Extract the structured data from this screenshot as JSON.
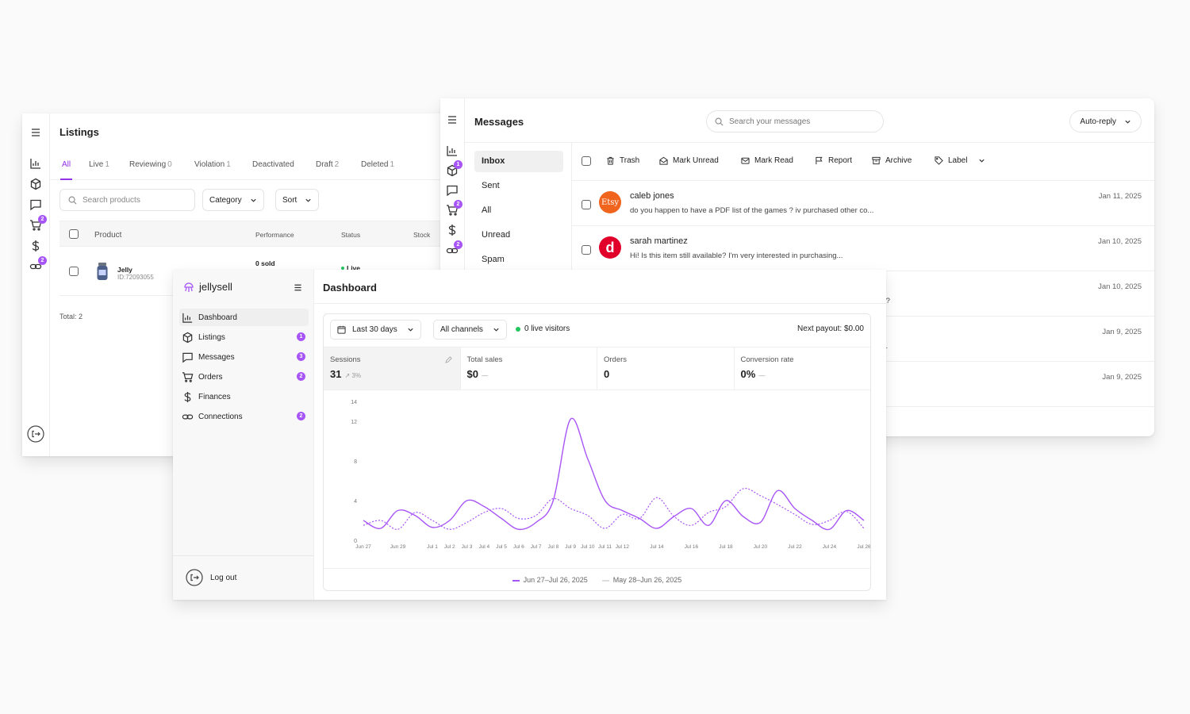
{
  "listings": {
    "title": "Listings",
    "rail_badges": [
      "2",
      "2"
    ],
    "tabs": [
      {
        "label": "All",
        "count": ""
      },
      {
        "label": "Live",
        "count": "1"
      },
      {
        "label": "Reviewing",
        "count": "0"
      },
      {
        "label": "Violation",
        "count": "1"
      },
      {
        "label": "Deactivated",
        "count": ""
      },
      {
        "label": "Draft",
        "count": "2"
      },
      {
        "label": "Deleted",
        "count": "1"
      }
    ],
    "search_placeholder": "Search products",
    "category_label": "Category",
    "sort_label": "Sort",
    "columns": {
      "product": "Product",
      "performance": "Performance",
      "status": "Status",
      "stock": "Stock"
    },
    "row": {
      "name": "Jelly",
      "id": "ID:72093055",
      "performance": "0 sold",
      "status": "Live"
    },
    "total": "Total: 2"
  },
  "messages": {
    "title": "Messages",
    "rail_badges": [
      "1",
      "2",
      "2"
    ],
    "search_placeholder": "Search your messages",
    "auto_reply": "Auto-reply",
    "folders": [
      "Inbox",
      "Sent",
      "All",
      "Unread",
      "Spam"
    ],
    "toolbar": {
      "trash": "Trash",
      "mark_unread": "Mark Unread",
      "mark_read": "Mark Read",
      "report": "Report",
      "archive": "Archive",
      "label": "Label"
    },
    "items": [
      {
        "name": "caleb jones",
        "snippet": "do you happen to have a PDF list of the games ? iv purchased other co...",
        "date": "Jan 11, 2025",
        "avatar_text": "Etsy",
        "avatar_color": "#f1641e"
      },
      {
        "name": "sarah martinez",
        "snippet": "Hi! Is this item still available? I'm very interested in purchasing...",
        "date": "Jan 10, 2025",
        "avatar_text": "d",
        "avatar_color": "#e0002a"
      },
      {
        "name": "",
        "snippet": "da?",
        "date": "Jan 10, 2025"
      },
      {
        "name": "",
        "snippet": "d...",
        "date": "Jan 9, 2025"
      },
      {
        "name": "",
        "snippet": "...",
        "date": "Jan 9, 2025"
      }
    ]
  },
  "dashboard": {
    "brand": "jellysell",
    "nav": [
      {
        "label": "Dashboard",
        "icon": "bar-chart-icon",
        "badge": ""
      },
      {
        "label": "Listings",
        "icon": "box-icon",
        "badge": "1"
      },
      {
        "label": "Messages",
        "icon": "message-icon",
        "badge": "3"
      },
      {
        "label": "Orders",
        "icon": "cart-icon",
        "badge": "2"
      },
      {
        "label": "Finances",
        "icon": "dollar-icon",
        "badge": ""
      },
      {
        "label": "Connections",
        "icon": "link-icon",
        "badge": "2"
      }
    ],
    "logout": "Log out",
    "title": "Dashboard",
    "range": "Last 30 days",
    "channels": "All channels",
    "live_visitors": "0 live visitors",
    "next_payout": "Next payout: $0.00",
    "metrics": [
      {
        "label": "Sessions",
        "value": "31",
        "delta": "↗ 3%"
      },
      {
        "label": "Total sales",
        "value": "$0",
        "delta": "—"
      },
      {
        "label": "Orders",
        "value": "0",
        "delta": ""
      },
      {
        "label": "Conversion rate",
        "value": "0%",
        "delta": "—"
      }
    ],
    "legend": {
      "current": "Jun 27–Jul 26, 2025",
      "previous": "May 28–Jun 26, 2025"
    }
  },
  "chart_data": {
    "type": "line",
    "yticks": [
      0,
      4,
      8,
      12,
      14
    ],
    "ylim": [
      0,
      14
    ],
    "xticks": [
      "Jun 27",
      "Jun 29",
      "Jul 1",
      "Jul 2",
      "Jul 3",
      "Jul 4",
      "Jul 5",
      "Jul 6",
      "Jul 7",
      "Jul 8",
      "Jul 9",
      "Jul 10",
      "Jul 11",
      "Jul 12",
      "Jul 14",
      "Jul 16",
      "Jul 18",
      "Jul 20",
      "Jul 22",
      "Jul 24",
      "Jul 26"
    ],
    "series": [
      {
        "name": "Jun 27–Jul 26, 2025",
        "color": "#a855f7",
        "style": "solid",
        "x": [
          "Jun 27",
          "Jun 28",
          "Jun 29",
          "Jun 30",
          "Jul 1",
          "Jul 2",
          "Jul 3",
          "Jul 4",
          "Jul 5",
          "Jul 6",
          "Jul 7",
          "Jul 8",
          "Jul 9",
          "Jul 10",
          "Jul 11",
          "Jul 12",
          "Jul 13",
          "Jul 14",
          "Jul 15",
          "Jul 16",
          "Jul 17",
          "Jul 18",
          "Jul 19",
          "Jul 20",
          "Jul 21",
          "Jul 22",
          "Jul 23",
          "Jul 24",
          "Jul 25",
          "Jul 26"
        ],
        "values": [
          2,
          1.2,
          3,
          2.5,
          1.3,
          2,
          4,
          3.4,
          2.2,
          1.1,
          1.8,
          4,
          12.2,
          8.2,
          4,
          3,
          2.2,
          1.2,
          2.4,
          3.2,
          1.5,
          4,
          2.4,
          1.8,
          5,
          3.2,
          2,
          1.1,
          3,
          2
        ]
      },
      {
        "name": "May 28–Jun 26, 2025",
        "color": "#a855f7",
        "style": "dashed",
        "x": [
          "Jun 27",
          "Jun 28",
          "Jun 29",
          "Jun 30",
          "Jul 1",
          "Jul 2",
          "Jul 3",
          "Jul 4",
          "Jul 5",
          "Jul 6",
          "Jul 7",
          "Jul 8",
          "Jul 9",
          "Jul 10",
          "Jul 11",
          "Jul 12",
          "Jul 13",
          "Jul 14",
          "Jul 15",
          "Jul 16",
          "Jul 17",
          "Jul 18",
          "Jul 19",
          "Jul 20",
          "Jul 21",
          "Jul 22",
          "Jul 23",
          "Jul 24",
          "Jul 25",
          "Jul 26"
        ],
        "values": [
          1.5,
          2,
          1.1,
          2.8,
          2,
          1.1,
          1.8,
          2.8,
          3.2,
          2.2,
          2.5,
          4.2,
          3.2,
          2.5,
          1.2,
          2.6,
          2.2,
          4.3,
          2.4,
          1.5,
          2.8,
          3.4,
          5.2,
          4.5,
          3.6,
          2.6,
          1.6,
          2,
          2.9,
          1.2
        ]
      }
    ]
  },
  "colors": {
    "accent": "#a855f7",
    "live": "#22c55e"
  }
}
